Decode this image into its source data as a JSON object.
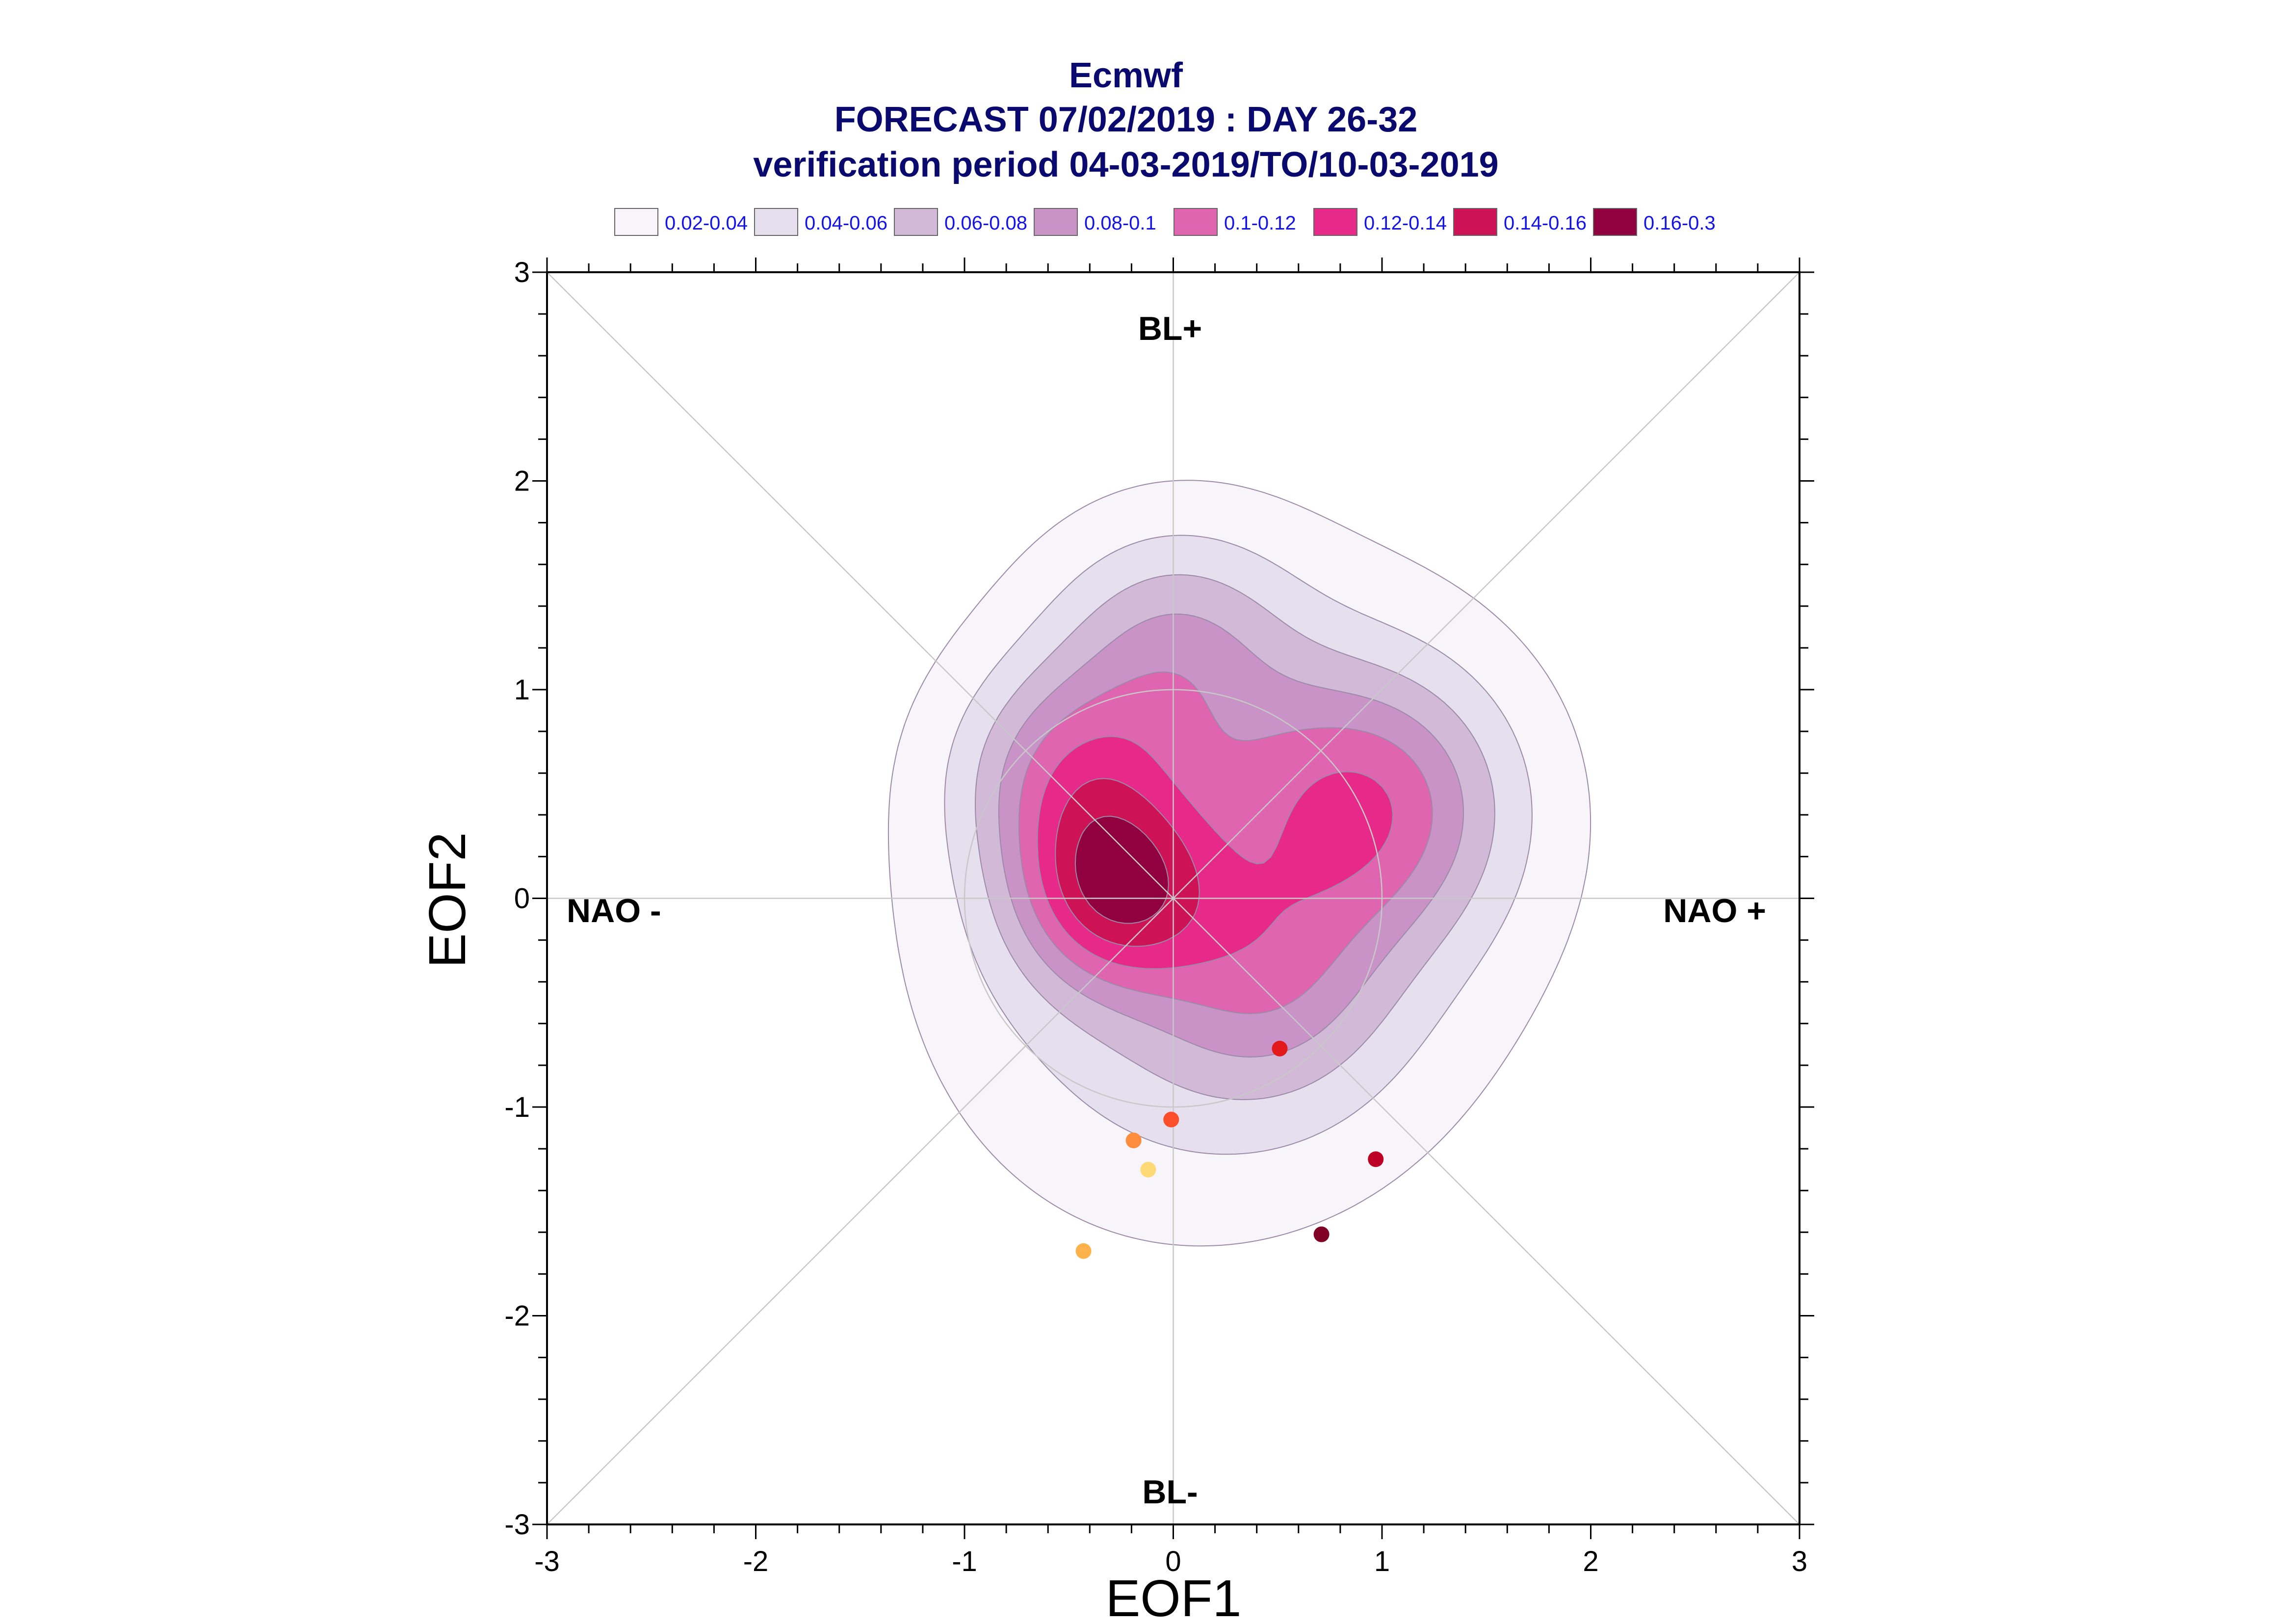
{
  "chart_data": {
    "type": "contour",
    "title_lines": [
      "Ecmwf",
      "FORECAST 07/02/2019 : DAY 26-32",
      "verification period 04-03-2019/TO/10-03-2019"
    ],
    "xlabel": "EOF1",
    "ylabel": "EOF2",
    "xlim": [
      -3,
      3
    ],
    "ylim": [
      -3,
      3
    ],
    "x_ticks": [
      "-3",
      "-2",
      "-1",
      "0",
      "1",
      "2",
      "3"
    ],
    "y_ticks": [
      "-3",
      "-2",
      "-1",
      "0",
      "1",
      "2",
      "3"
    ],
    "regions": {
      "top": "BL+",
      "bottom": "BL-",
      "left": "NAO -",
      "right": "NAO +"
    },
    "legend": [
      {
        "label": "0.02-0.04",
        "color": "#f7f5fa"
      },
      {
        "label": "0.04-0.06",
        "color": "#e6dfee"
      },
      {
        "label": "0.06-0.08",
        "color": "#d3b9d8"
      },
      {
        "label": "0.08-0.1",
        "color": "#c993c7"
      },
      {
        "label": "0.1-0.12",
        "color": "#df65b0"
      },
      {
        "label": "0.12-0.14",
        "color": "#e7298a"
      },
      {
        "label": "0.14-0.16",
        "color": "#ce1256"
      },
      {
        "label": "0.16-0.3",
        "color": "#91003f"
      }
    ],
    "contour_levels": [
      0.02,
      0.04,
      0.06,
      0.08,
      0.1,
      0.12,
      0.14,
      0.16
    ],
    "points": [
      {
        "x": 0.51,
        "y": -0.72,
        "color": "#e31a1c"
      },
      {
        "x": -0.01,
        "y": -1.06,
        "color": "#fc4e2a"
      },
      {
        "x": -0.19,
        "y": -1.16,
        "color": "#fd8d3c"
      },
      {
        "x": -0.12,
        "y": -1.3,
        "color": "#fed976"
      },
      {
        "x": -0.43,
        "y": -1.69,
        "color": "#feb24c"
      },
      {
        "x": 0.97,
        "y": -1.25,
        "color": "#bd0026"
      },
      {
        "x": 0.71,
        "y": -1.61,
        "color": "#800026"
      }
    ],
    "grid": false
  }
}
